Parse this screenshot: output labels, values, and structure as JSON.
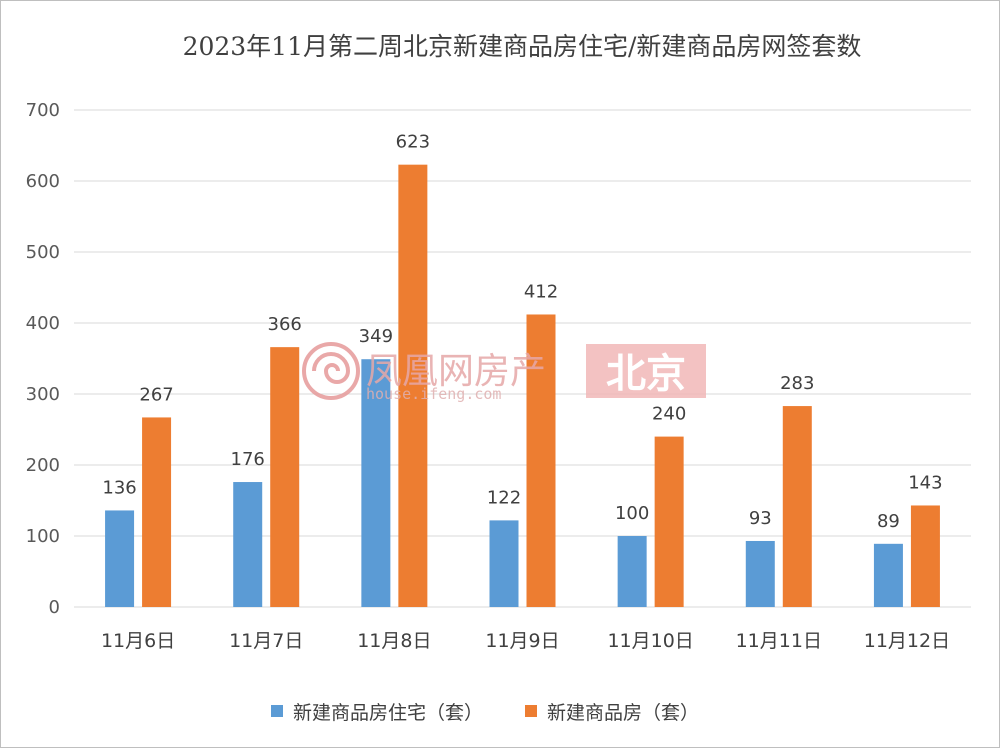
{
  "chart_data": {
    "type": "bar",
    "title": "2023年11月第二周北京新建商品房住宅/新建商品房网签套数",
    "categories": [
      "11月6日",
      "11月7日",
      "11月8日",
      "11月9日",
      "11月10日",
      "11月11日",
      "11月12日"
    ],
    "series": [
      {
        "name": "新建商品房住宅（套）",
        "color": "#5b9bd5",
        "values": [
          136,
          176,
          349,
          122,
          100,
          93,
          89
        ]
      },
      {
        "name": "新建商品房（套）",
        "color": "#ed7d31",
        "values": [
          267,
          366,
          623,
          412,
          240,
          283,
          143
        ]
      }
    ],
    "ylim": [
      0,
      700
    ],
    "yticks": [
      0,
      100,
      200,
      300,
      400,
      500,
      600,
      700
    ],
    "grid": true,
    "legend_position": "bottom",
    "data_labels": true
  },
  "watermark": {
    "brand": "凤凰网房产",
    "url": "house.ifeng.com",
    "city": "北京",
    "accent": "#e06060"
  }
}
